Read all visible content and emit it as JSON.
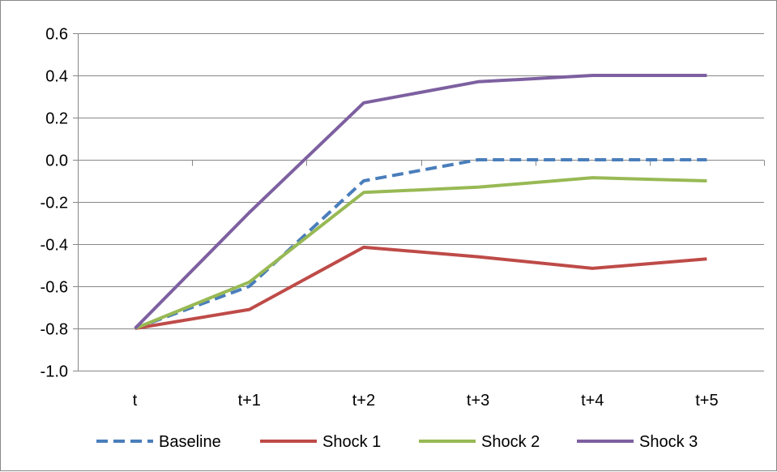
{
  "chart_data": {
    "type": "line",
    "title": "",
    "xlabel": "",
    "ylabel": "",
    "categories": [
      "t",
      "t+1",
      "t+2",
      "t+3",
      "t+4",
      "t+5"
    ],
    "ylim": [
      -1.0,
      0.6
    ],
    "yticks": [
      "-1.0",
      "-0.8",
      "-0.6",
      "-0.4",
      "-0.2",
      "0.0",
      "0.2",
      "0.4",
      "0.6"
    ],
    "grid": true,
    "legend": "bottom",
    "series": [
      {
        "name": "Baseline",
        "values": [
          -0.8,
          -0.6,
          -0.1,
          0.0,
          0.0,
          0.0
        ],
        "color": "#4a7ebb",
        "dash": "dashed"
      },
      {
        "name": "Shock 1",
        "values": [
          -0.8,
          -0.71,
          -0.415,
          -0.46,
          -0.515,
          -0.47
        ],
        "color": "#be4b48",
        "dash": "solid"
      },
      {
        "name": "Shock 2",
        "values": [
          -0.8,
          -0.58,
          -0.155,
          -0.13,
          -0.085,
          -0.1
        ],
        "color": "#98b954",
        "dash": "solid"
      },
      {
        "name": "Shock 3",
        "values": [
          -0.8,
          -0.25,
          0.27,
          0.37,
          0.4,
          0.4
        ],
        "color": "#7d60a0",
        "dash": "solid"
      }
    ]
  }
}
